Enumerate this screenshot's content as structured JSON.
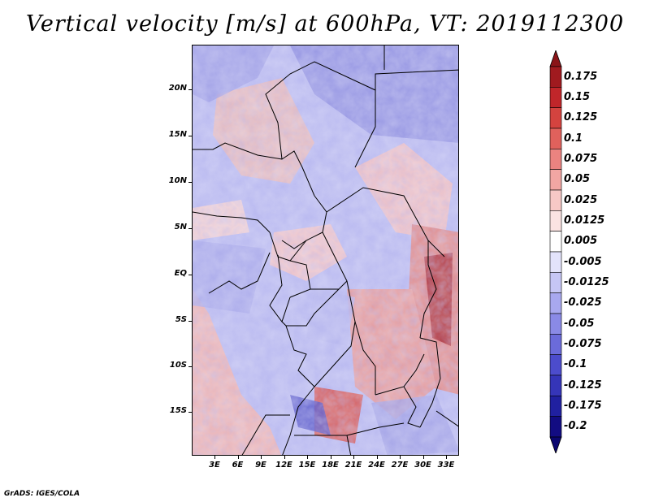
{
  "title": "Vertical velocity [m/s] at 600hPa, VT: 2019112300",
  "footer": "GrADS: IGES/COLA",
  "map": {
    "lat_labels": [
      "20N",
      "15N",
      "10N",
      "5N",
      "EQ",
      "5S",
      "10S",
      "15S"
    ],
    "lon_labels": [
      "3E",
      "6E",
      "9E",
      "12E",
      "15E",
      "18E",
      "21E",
      "24E",
      "27E",
      "30E",
      "33E"
    ]
  },
  "colorbar": {
    "labels": [
      "0.175",
      "0.15",
      "0.125",
      "0.1",
      "0.075",
      "0.05",
      "0.025",
      "0.0125",
      "0.005",
      "-0.005",
      "-0.0125",
      "-0.025",
      "-0.05",
      "-0.075",
      "-0.1",
      "-0.125",
      "-0.175",
      "-0.2"
    ],
    "colors": [
      "#a01a1f",
      "#c0262a",
      "#d4433f",
      "#e0615c",
      "#eb8380",
      "#f2a6a3",
      "#f7c8c6",
      "#fbe3e2",
      "#ffffff",
      "#e3e3fb",
      "#c6c6f5",
      "#a8a8ef",
      "#8a8ae6",
      "#6b6bda",
      "#4c4ccc",
      "#3535b8",
      "#2020a0",
      "#120c82"
    ]
  }
}
